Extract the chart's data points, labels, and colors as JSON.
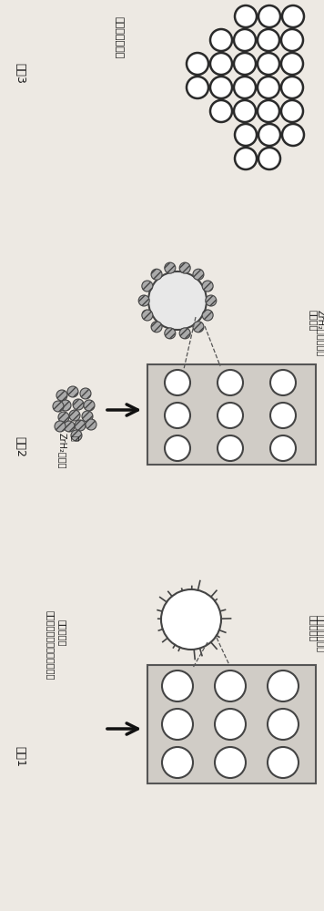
{
  "bg_color": "#ede9e3",
  "white": "#ffffff",
  "dark": "#1a1a1a",
  "gray_fill": "#b0b0b0",
  "box_bg": "#d8d4ce",
  "step3_label": "步骤3",
  "step3_text": "溢剂去除和干燥",
  "step2_label": "步骤2",
  "step2_nano_label1": "ZrH₂纳米颖",
  "step2_nano_label2": "粒",
  "step2_annot1": "ZrH₂粉末附着到",
  "step2_annot2": "颟粒表面",
  "step1_label": "步骤1",
  "step1_text1": "铝合金粉末与无水溶剂和溶解",
  "step1_text2": "的有机配体",
  "step1_annot1": "有机配体附着到",
  "step1_annot2": "粉末表面上"
}
